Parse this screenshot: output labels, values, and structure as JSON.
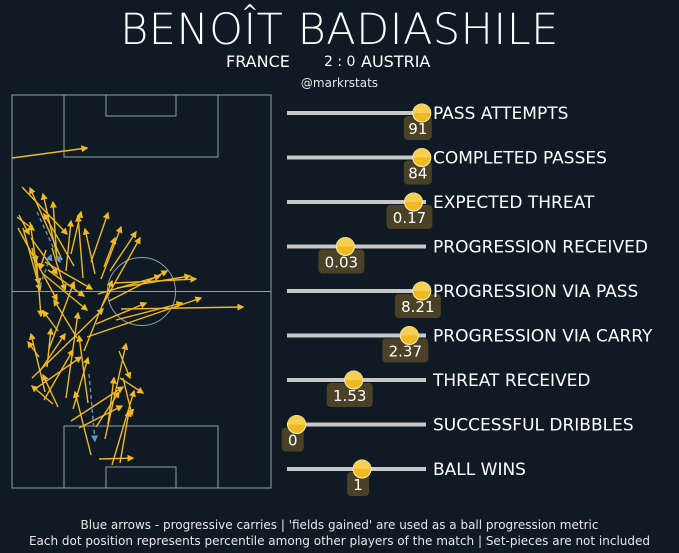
{
  "header": {
    "player": "BENOÎT BADIASHILE",
    "home_team": "FRANCE",
    "score": "2 : 0",
    "away_team": "AUSTRIA",
    "credit": "@markrstats"
  },
  "footer": {
    "line1": "Blue arrows - progressive carries | 'fields gained' are used as a ball progression metric",
    "line2": "Each dot position represents percentile among other players of the match | Set-pieces are not included"
  },
  "colors": {
    "background": "#0f1a24",
    "pitch_lines": "#8fa3a6",
    "pass_arrow": "#f0b922",
    "carry_arrow": "#5b97c9",
    "track": "#c8c8c8",
    "dot": "#f0b922",
    "value_box": "#4a4126"
  },
  "chart_data": [
    {
      "type": "pitch-arrows",
      "passes": [
        [
          12,
          158,
          87,
          148
        ],
        [
          22,
          187,
          67,
          234
        ],
        [
          19,
          215,
          29,
          234
        ],
        [
          17,
          217,
          34,
          230
        ],
        [
          23,
          228,
          40,
          290
        ],
        [
          18,
          228,
          57,
          300
        ],
        [
          30,
          222,
          36,
          262
        ],
        [
          31,
          238,
          57,
          274
        ],
        [
          32,
          248,
          39,
          284
        ],
        [
          46,
          250,
          40,
          269
        ],
        [
          52,
          248,
          65,
          290
        ],
        [
          36,
          255,
          41,
          316
        ],
        [
          45,
          262,
          92,
          289
        ],
        [
          48,
          270,
          84,
          296
        ],
        [
          42,
          273,
          87,
          310
        ],
        [
          56,
          251,
          43,
          194
        ],
        [
          57,
          260,
          53,
          202
        ],
        [
          62,
          260,
          30,
          188
        ],
        [
          71,
          254,
          81,
          212
        ],
        [
          66,
          271,
          71,
          221
        ],
        [
          74,
          266,
          44,
          214
        ],
        [
          83,
          278,
          78,
          216
        ],
        [
          91,
          262,
          108,
          213
        ],
        [
          95,
          274,
          85,
          229
        ],
        [
          104,
          267,
          115,
          238
        ],
        [
          101,
          279,
          121,
          227
        ],
        [
          110,
          271,
          136,
          232
        ],
        [
          115,
          283,
          196,
          279
        ],
        [
          117,
          288,
          190,
          276
        ],
        [
          98,
          294,
          160,
          276
        ],
        [
          102,
          306,
          140,
          238
        ],
        [
          109,
          301,
          167,
          271
        ],
        [
          121,
          309,
          243,
          307
        ],
        [
          116,
          320,
          182,
          303
        ],
        [
          96,
          324,
          146,
          303
        ],
        [
          87,
          337,
          201,
          298
        ],
        [
          84,
          351,
          112,
          281
        ],
        [
          77,
          338,
          54,
          300
        ],
        [
          58,
          331,
          43,
          311
        ],
        [
          49,
          349,
          74,
          282
        ],
        [
          39,
          357,
          28,
          342
        ],
        [
          40,
          371,
          65,
          334
        ],
        [
          47,
          367,
          51,
          329
        ],
        [
          32,
          378,
          103,
          309
        ],
        [
          35,
          389,
          81,
          357
        ],
        [
          45,
          392,
          31,
          334
        ],
        [
          44,
          400,
          73,
          350
        ],
        [
          53,
          404,
          32,
          386
        ],
        [
          58,
          407,
          43,
          375
        ],
        [
          66,
          398,
          78,
          313
        ],
        [
          73,
          409,
          88,
          358
        ],
        [
          88,
          403,
          79,
          336
        ],
        [
          71,
          421,
          123,
          387
        ],
        [
          79,
          428,
          122,
          406
        ],
        [
          96,
          427,
          119,
          392
        ],
        [
          108,
          424,
          114,
          378
        ],
        [
          105,
          439,
          126,
          344
        ],
        [
          91,
          455,
          75,
          392
        ],
        [
          120,
          463,
          129,
          411
        ],
        [
          99,
          459,
          133,
          458
        ],
        [
          112,
          465,
          134,
          391
        ],
        [
          120,
          378,
          143,
          393
        ],
        [
          123,
          378,
          132,
          415
        ],
        [
          119,
          351,
          130,
          378
        ]
      ],
      "carries": [
        [
          37,
          212,
          60,
          262
        ],
        [
          40,
          286,
          51,
          255
        ],
        [
          89,
          374,
          95,
          441
        ]
      ]
    },
    {
      "type": "percentile-strip",
      "xlim": [
        0,
        100
      ],
      "metrics": [
        {
          "label": "PASS ATTEMPTS",
          "value": "91",
          "percentile": 97
        },
        {
          "label": "COMPLETED PASSES",
          "value": "84",
          "percentile": 97
        },
        {
          "label": "EXPECTED THREAT",
          "value": "0.17",
          "percentile": 91
        },
        {
          "label": "PROGRESSION RECEIVED",
          "value": "0.03",
          "percentile": 42
        },
        {
          "label": "PROGRESSION VIA PASS",
          "value": "8.21",
          "percentile": 97
        },
        {
          "label": "PROGRESSION VIA CARRY",
          "value": "2.37",
          "percentile": 88
        },
        {
          "label": "THREAT RECEIVED",
          "value": "1.53",
          "percentile": 48
        },
        {
          "label": "SUCCESSFUL DRIBBLES",
          "value": "0",
          "percentile": 7
        },
        {
          "label": "BALL WINS",
          "value": "1",
          "percentile": 54
        }
      ]
    }
  ]
}
